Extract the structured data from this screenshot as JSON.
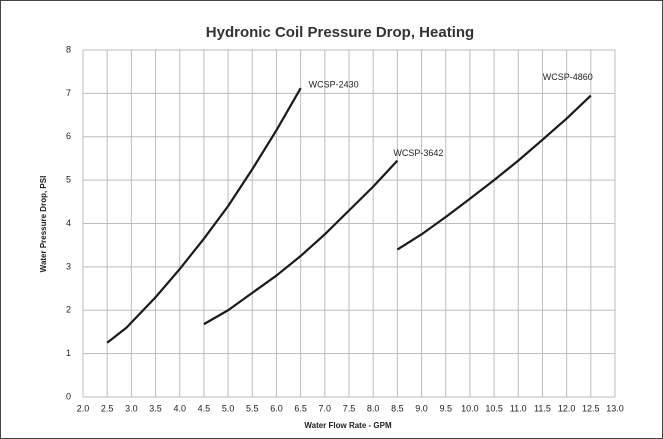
{
  "chart_data": {
    "type": "line",
    "title": "Hydronic Coil Pressure Drop, Heating",
    "x_label": "Water Flow Rate - GPM",
    "y_label": "Water Pressure Drop, PSI",
    "xlim": [
      2,
      13
    ],
    "ylim": [
      0,
      8
    ],
    "xticks": [
      {
        "value": 2,
        "label": "2.0"
      },
      2.5,
      {
        "value": 3,
        "label": "3.0"
      },
      3.5,
      {
        "value": 4,
        "label": "4.0"
      },
      4.5,
      {
        "value": 5,
        "label": "5.0"
      },
      5.5,
      {
        "value": 6,
        "label": "6.0"
      },
      6.5,
      {
        "value": 7,
        "label": "7.0"
      },
      7.5,
      {
        "value": 8,
        "label": "8.0"
      },
      8.5,
      {
        "value": 9,
        "label": "9.0"
      },
      9.5,
      {
        "value": 10,
        "label": "10.0"
      },
      10.5,
      {
        "value": 11,
        "label": "11.0"
      },
      11.5,
      {
        "value": 12,
        "label": "12.0"
      },
      12.5,
      {
        "value": 13,
        "label": "13.0"
      }
    ],
    "yticks": [
      0,
      1,
      2,
      3,
      4,
      5,
      6,
      7,
      8
    ],
    "grid": true,
    "series": [
      {
        "name": "WCSP-2430",
        "color": "#1a1a1a",
        "x": [
          2.5,
          2.9,
          3.5,
          4.0,
          4.5,
          5.0,
          5.5,
          6.0,
          6.5
        ],
        "values": [
          1.25,
          1.6,
          2.3,
          2.95,
          3.65,
          4.4,
          5.25,
          6.15,
          7.12
        ]
      },
      {
        "name": "WCSP-3642",
        "color": "#1a1a1a",
        "x": [
          4.5,
          5.0,
          5.5,
          6.0,
          6.5,
          7.0,
          7.5,
          8.0,
          8.5
        ],
        "values": [
          1.68,
          2.0,
          2.4,
          2.8,
          3.25,
          3.75,
          4.3,
          4.85,
          5.45
        ]
      },
      {
        "name": "WCSP-4860",
        "color": "#1a1a1a",
        "x": [
          8.5,
          9.0,
          9.5,
          10.0,
          10.5,
          11.0,
          11.5,
          12.0,
          12.5
        ],
        "values": [
          3.4,
          3.75,
          4.15,
          4.57,
          5.0,
          5.45,
          5.93,
          6.42,
          6.95
        ]
      }
    ]
  }
}
